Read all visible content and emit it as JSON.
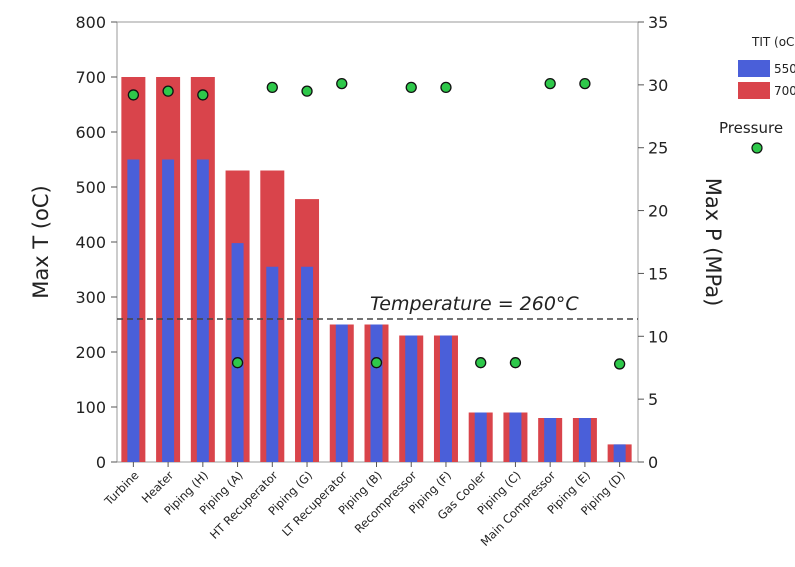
{
  "chart_data": {
    "type": "bar",
    "categories": [
      "Turbine",
      "Heater",
      "Piping (H)",
      "Piping (A)",
      "HT Recuperator",
      "Piping (G)",
      "LT Recuperator",
      "Piping (B)",
      "Recompressor",
      "Piping (F)",
      "Gas Cooler",
      "Piping (C)",
      "Main Compressor",
      "Piping (E)",
      "Piping (D)"
    ],
    "series": [
      {
        "name": "700",
        "axis": "left",
        "color": "#d9444b",
        "values": [
          700,
          700,
          700,
          530,
          530,
          478,
          250,
          250,
          230,
          230,
          90,
          90,
          80,
          80,
          32
        ]
      },
      {
        "name": "550",
        "axis": "left",
        "color": "#4a5fd9",
        "values": [
          550,
          550,
          550,
          398,
          355,
          355,
          250,
          250,
          230,
          230,
          90,
          90,
          80,
          80,
          32
        ]
      },
      {
        "name": "Pressure",
        "type": "scatter",
        "axis": "right",
        "color": "#2ec84a",
        "values": [
          29.2,
          29.5,
          29.2,
          7.9,
          29.8,
          29.5,
          30.1,
          7.9,
          29.8,
          29.8,
          7.9,
          7.9,
          30.1,
          30.1,
          7.8
        ]
      }
    ],
    "ylabel": "Max T (oC)",
    "ylim": [
      0,
      800
    ],
    "yticks": [
      "0",
      "100",
      "200",
      "300",
      "400",
      "500",
      "600",
      "700",
      "800"
    ],
    "y2label": "Max P (MPa)",
    "y2lim": [
      0,
      35
    ],
    "y2ticks": [
      "0",
      "5",
      "10",
      "15",
      "20",
      "25",
      "30",
      "35"
    ],
    "legend": {
      "title": "TIT (oC)",
      "pressure_label": "Pressure",
      "placement": "right"
    },
    "reference_line": {
      "value": 260,
      "label": "Temperature = 260°C",
      "style": "dashed"
    },
    "grid": false
  }
}
